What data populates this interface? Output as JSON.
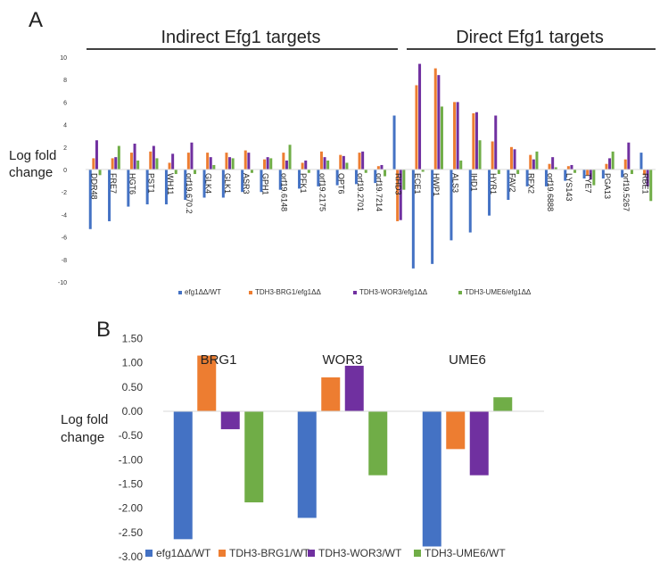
{
  "figure": {
    "panel_a_letter": "A",
    "panel_b_letter": "B"
  },
  "chart_data": [
    {
      "id": "panel-a",
      "type": "bar",
      "title": "",
      "group_labels": [
        "Indirect Efg1 targets",
        "Direct Efg1 targets"
      ],
      "ylabel_lines": [
        "Log fold",
        "change"
      ],
      "ylim": [
        -10,
        10
      ],
      "yticks": [
        10,
        8,
        6,
        4,
        2,
        0,
        -2,
        -4,
        -6,
        -8,
        -10
      ],
      "legend_position": "bottom",
      "categories": [
        "DDR48",
        "FRE7",
        "HGT6",
        "PST1",
        "WH11",
        "orf19.670.2",
        "GLK4",
        "GLK1",
        "ASR3",
        "GPH1",
        "orf19.6148",
        "PFK1",
        "orf19.2175",
        "OPT6",
        "orf19.2701",
        "orf19.7214",
        "RHD3",
        "ECE1",
        "HWP1",
        "ALS3",
        "IHD1",
        "HYR1",
        "FAV2",
        "RFX2",
        "orf19.6888",
        "LYS143",
        "TYE7",
        "PGA13",
        "orf19.5267",
        "RBE1"
      ],
      "indirect_count": 17,
      "series": [
        {
          "name": "efg1ΔΔ/WT",
          "color": "#4472C4",
          "values": [
            -5.3,
            -4.6,
            -3.3,
            -3.1,
            -3.1,
            -2.7,
            -2.5,
            -2.5,
            -2.0,
            -2.0,
            -1.8,
            -1.7,
            -1.5,
            -1.4,
            -1.3,
            -1.2,
            4.8,
            -8.8,
            -8.4,
            -6.3,
            -5.6,
            -4.1,
            -2.7,
            -1.5,
            -1.5,
            -1.0,
            -0.8,
            -0.8,
            -0.7,
            1.5
          ]
        },
        {
          "name": "TDH3-BRG1/efg1ΔΔ",
          "color": "#ED7D31",
          "values": [
            1.0,
            1.0,
            1.5,
            1.6,
            0.6,
            1.5,
            1.5,
            1.5,
            1.7,
            0.9,
            1.5,
            0.6,
            1.6,
            1.3,
            1.5,
            0.3,
            -4.6,
            7.5,
            9.0,
            6.0,
            5.0,
            2.5,
            2.0,
            1.3,
            0.5,
            0.3,
            -0.5,
            0.5,
            0.9,
            -0.5
          ]
        },
        {
          "name": "TDH3-WOR3/efg1ΔΔ",
          "color": "#7030A0",
          "values": [
            2.6,
            1.1,
            2.3,
            2.1,
            1.4,
            2.4,
            1.1,
            1.1,
            1.5,
            1.1,
            0.8,
            0.8,
            1.1,
            1.2,
            1.6,
            0.4,
            -4.5,
            9.4,
            8.4,
            6.0,
            5.1,
            4.8,
            1.8,
            0.9,
            1.1,
            0.4,
            -0.9,
            1.0,
            2.4,
            -1.5
          ]
        },
        {
          "name": "TDH3-UME6/efg1ΔΔ",
          "color": "#70AD47",
          "values": [
            -0.5,
            2.1,
            0.8,
            1.0,
            -0.4,
            -0.4,
            0.4,
            1.0,
            -0.3,
            1.0,
            2.2,
            -0.3,
            0.8,
            0.6,
            -0.3,
            -0.6,
            -1.8,
            -0.2,
            5.6,
            0.8,
            2.6,
            -0.4,
            -0.4,
            1.6,
            0.2,
            -0.3,
            -1.4,
            1.6,
            -0.4,
            -2.8
          ]
        }
      ]
    },
    {
      "id": "panel-b",
      "type": "bar",
      "title": "",
      "ylabel_lines": [
        "Log fold",
        "change"
      ],
      "ylim": [
        -3.0,
        1.5
      ],
      "yticks": [
        "1.50",
        "1.00",
        "0.50",
        "0.00",
        "-0.50",
        "-1.00",
        "-1.50",
        "-2.00",
        "-2.50",
        "-3.00"
      ],
      "legend_position": "bottom",
      "categories": [
        "BRG1",
        "WOR3",
        "UME6"
      ],
      "series": [
        {
          "name": "efg1ΔΔ/WT",
          "color": "#4472C4",
          "values": [
            -2.64,
            -2.2,
            -2.79
          ]
        },
        {
          "name": "TDH3-BRG1/WT",
          "color": "#ED7D31",
          "values": [
            1.15,
            0.7,
            -0.78
          ]
        },
        {
          "name": "TDH3-WOR3/WT",
          "color": "#7030A0",
          "values": [
            -0.37,
            0.94,
            -1.32
          ]
        },
        {
          "name": "TDH3-UME6/WT",
          "color": "#70AD47",
          "values": [
            -1.88,
            -1.32,
            0.29
          ]
        }
      ]
    }
  ]
}
